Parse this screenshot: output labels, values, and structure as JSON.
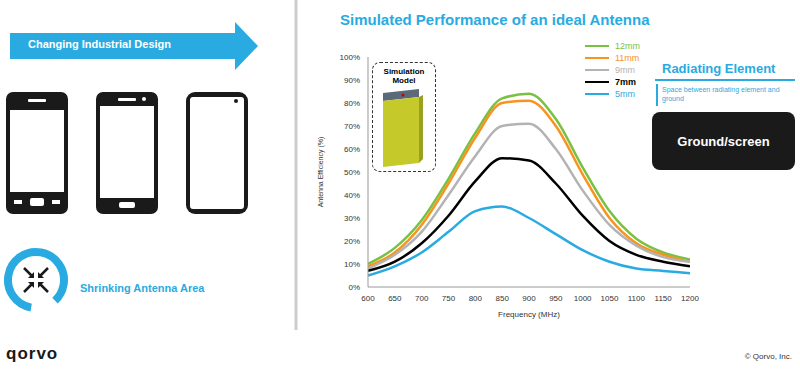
{
  "slide": {
    "banner": "Changing Industrial Design",
    "icon_label": "Shrinking Antenna Area",
    "logo": "qorvo",
    "copyright": "© Qorvo, Inc."
  },
  "chart_data": {
    "type": "line",
    "title": "Simulated Performance of an ideal Antenna",
    "xlabel": "Frequency (MHz)",
    "ylabel": "Antenna Efficiency (%)",
    "annotations": {
      "inset": "Simulation Model",
      "element": "Radiating Element",
      "gap": "Space between radiating element and ground",
      "ground": "Ground/screen"
    },
    "x": [
      600,
      650,
      700,
      750,
      800,
      850,
      900,
      950,
      1000,
      1050,
      1100,
      1150,
      1200
    ],
    "series": [
      {
        "name": "12mm",
        "color": "#7ac143",
        "values": [
          10,
          17,
          29,
          47,
          67,
          82,
          84,
          73,
          52,
          33,
          21,
          15,
          12
        ]
      },
      {
        "name": "11mm",
        "color": "#f7941d",
        "values": [
          9,
          15,
          27,
          45,
          65,
          80,
          81,
          70,
          49,
          30,
          19,
          14,
          11
        ]
      },
      {
        "name": "9mm",
        "color": "#b3b3b3",
        "values": [
          8,
          14,
          24,
          40,
          57,
          70,
          71,
          60,
          42,
          27,
          18,
          13,
          11
        ]
      },
      {
        "name": "7mm",
        "color": "#000000",
        "values": [
          7,
          11,
          19,
          31,
          46,
          56,
          55,
          45,
          31,
          20,
          14,
          11,
          9
        ]
      },
      {
        "name": "5mm",
        "color": "#29abe2",
        "values": [
          5,
          9,
          15,
          24,
          33,
          35,
          30,
          23,
          16,
          11,
          8,
          7,
          6
        ]
      }
    ],
    "xlim": [
      600,
      1200
    ],
    "xticks": [
      600,
      650,
      700,
      750,
      800,
      850,
      900,
      950,
      1000,
      1050,
      1100,
      1150,
      1200
    ],
    "ylim": [
      0,
      100
    ],
    "yticks": [
      {
        "value": 0,
        "label": "0%"
      },
      {
        "value": 10,
        "label": "10%"
      },
      {
        "value": 20,
        "label": "20%"
      },
      {
        "value": 30,
        "label": "30%"
      },
      {
        "value": 40,
        "label": "40%"
      },
      {
        "value": 50,
        "label": "50%"
      },
      {
        "value": 60,
        "label": "60%"
      },
      {
        "value": 70,
        "label": "70%"
      },
      {
        "value": 80,
        "label": "80%"
      },
      {
        "value": 90,
        "label": "90%"
      },
      {
        "value": 100,
        "label": "100%"
      }
    ],
    "grid": false,
    "legend": "top-right"
  }
}
